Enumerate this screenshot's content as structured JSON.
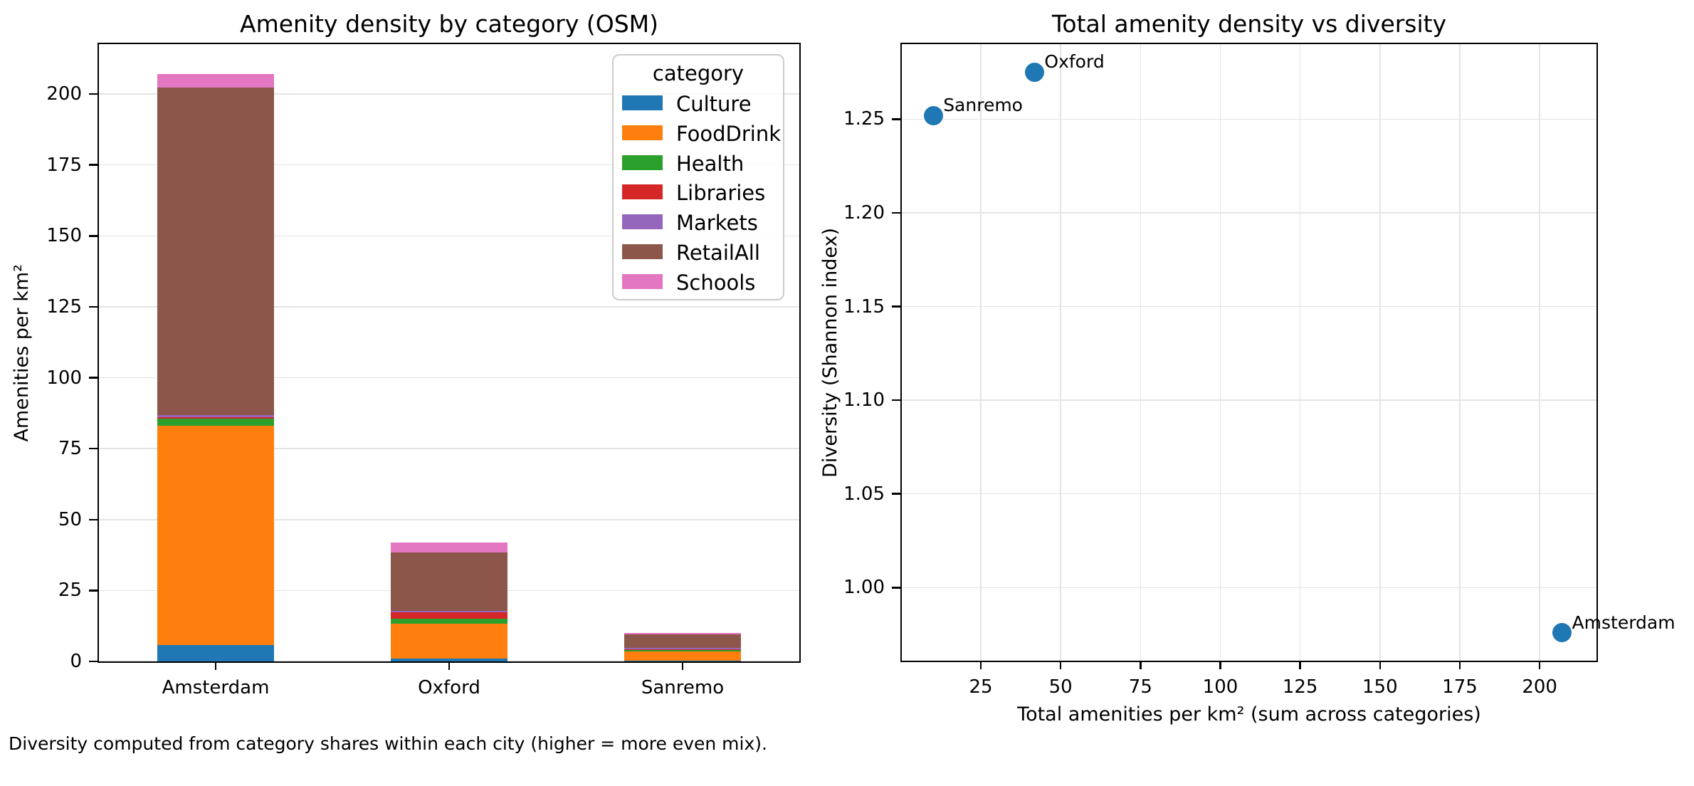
{
  "figure": {
    "caption": "Diversity computed from category shares within each city (higher = more even mix)."
  },
  "chart_data": [
    {
      "type": "bar",
      "stacked": true,
      "title": "Amenity density by category (OSM)",
      "xlabel": "",
      "ylabel": "Amenities per km²",
      "categories": [
        "Amsterdam",
        "Oxford",
        "Sanremo"
      ],
      "series": [
        {
          "name": "Culture",
          "color": "#1f77b4",
          "values": [
            5.8,
            0.9,
            0.25
          ]
        },
        {
          "name": "FoodDrink",
          "color": "#ff7f0e",
          "values": [
            77.2,
            12.4,
            3.2
          ]
        },
        {
          "name": "Health",
          "color": "#2ca02c",
          "values": [
            2.7,
            1.75,
            0.65
          ]
        },
        {
          "name": "Libraries",
          "color": "#d62728",
          "values": [
            0.4,
            2.25,
            0.2
          ]
        },
        {
          "name": "Markets",
          "color": "#9467bd",
          "values": [
            0.8,
            0.6,
            0.5
          ]
        },
        {
          "name": "RetailAll",
          "color": "#8c564b",
          "values": [
            115.3,
            20.5,
            4.8
          ]
        },
        {
          "name": "Schools",
          "color": "#e377c2",
          "values": [
            4.8,
            3.4,
            0.5
          ]
        }
      ],
      "totals": [
        207.0,
        41.8,
        10.1
      ],
      "yticks": [
        0,
        25,
        50,
        75,
        100,
        125,
        150,
        175,
        200
      ],
      "ylim": [
        0,
        217.6
      ],
      "legend_title": "category",
      "grid": "horizontal",
      "grid_color": "#e4e4e4"
    },
    {
      "type": "scatter",
      "title": "Total amenity density vs diversity",
      "xlabel": "Total amenities per km² (sum across categories)",
      "ylabel": "Diversity (Shannon index)",
      "points": [
        {
          "label": "Sanremo",
          "x": 10.1,
          "y": 1.252
        },
        {
          "label": "Oxford",
          "x": 41.8,
          "y": 1.275
        },
        {
          "label": "Amsterdam",
          "x": 207.0,
          "y": 0.976
        }
      ],
      "xticks": [
        25,
        50,
        75,
        100,
        125,
        150,
        175,
        200
      ],
      "yticks": [
        "1.00",
        "1.05",
        "1.10",
        "1.15",
        "1.20",
        "1.25"
      ],
      "xlim": [
        0.25,
        217.8
      ],
      "ylim": [
        0.961,
        1.29
      ],
      "marker_color": "#1f77b4",
      "grid": "both",
      "grid_color": "#e4e4e4"
    }
  ]
}
